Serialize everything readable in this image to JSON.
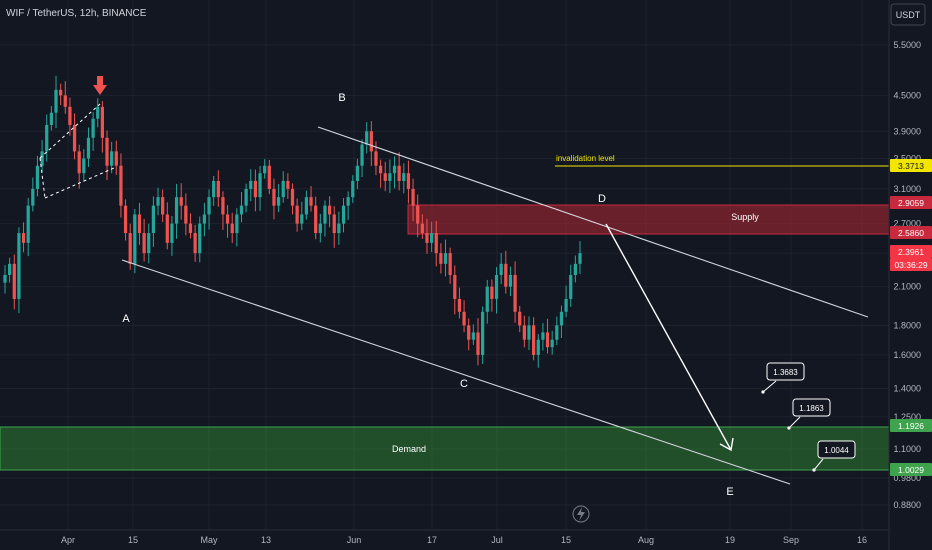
{
  "header": {
    "title": "WIF / TetherUS, 12h, BINANCE"
  },
  "price_axis": {
    "currency": "USDT",
    "ticks": [
      "5.5000",
      "4.5000",
      "3.9000",
      "3.5000",
      "3.1000",
      "2.7000",
      "2.4000",
      "2.1000",
      "1.8000",
      "1.6000",
      "1.4000",
      "1.2500",
      "1.1000",
      "0.9800",
      "0.8800"
    ]
  },
  "time_axis": {
    "ticks": [
      "Apr",
      "15",
      "May",
      "13",
      "Jun",
      "17",
      "Jul",
      "15",
      "Aug",
      "19",
      "Sep",
      "16"
    ]
  },
  "price_labels": [
    {
      "text": "3.3713",
      "color": "#f2e600",
      "text_color": "#131722"
    },
    {
      "text": "2.9059",
      "color": "#c8293d",
      "text_color": "#ffffff"
    },
    {
      "text": "2.5860",
      "color": "#c8293d",
      "text_color": "#ffffff"
    },
    {
      "text": "2.3961",
      "color": "#f23645",
      "text_color": "#ffffff"
    },
    {
      "text": "03:36:29",
      "color": "#f23645",
      "text_color": "#ffffff"
    },
    {
      "text": "1.1926",
      "color": "#3fa34d",
      "text_color": "#ffffff"
    },
    {
      "text": "1.0029",
      "color": "#3fa34d",
      "text_color": "#ffffff"
    }
  ],
  "zones": {
    "supply": {
      "label": "Supply",
      "top": 2.9059,
      "bottom": 2.586,
      "color": "#b22833"
    },
    "demand": {
      "label": "Demand",
      "top": 1.1926,
      "bottom": 1.0029,
      "color": "#2e7d32"
    }
  },
  "annotations": {
    "invalidation": {
      "text": "invalidation level",
      "value": 3.3713,
      "color": "#f2e600"
    },
    "wave_labels": [
      "A",
      "B",
      "C",
      "D",
      "E"
    ],
    "target_boxes": [
      "1.3683",
      "1.1863",
      "1.0044"
    ]
  },
  "colors": {
    "up": "#26a69a",
    "down": "#ef5350",
    "background": "#131722",
    "grid": "#1e222d",
    "lines": "#d1d4dc"
  },
  "chart_data": {
    "type": "candlestick",
    "title": "WIF / TetherUS, 12h, BINANCE",
    "symbol": "WIF/USDT",
    "interval": "12h",
    "ylabel": "USDT",
    "yscale": "log",
    "ylim": [
      0.8,
      6.0
    ],
    "x_ticks": [
      "Apr",
      "15",
      "May",
      "13",
      "Jun",
      "17",
      "Jul",
      "15",
      "Aug",
      "19",
      "Sep",
      "16"
    ],
    "approx_closes_12h": [
      2.2,
      2.3,
      2.0,
      2.6,
      2.5,
      2.9,
      3.1,
      3.4,
      3.6,
      4.0,
      4.2,
      4.6,
      4.5,
      4.3,
      4.0,
      3.6,
      3.3,
      3.5,
      3.8,
      4.1,
      4.3,
      3.8,
      3.4,
      3.6,
      3.4,
      2.9,
      2.6,
      2.3,
      2.8,
      2.6,
      2.4,
      2.6,
      2.9,
      3.0,
      2.8,
      2.5,
      2.7,
      3.0,
      2.9,
      2.7,
      2.6,
      2.4,
      2.7,
      2.8,
      3.0,
      3.2,
      3.0,
      2.8,
      2.7,
      2.6,
      2.8,
      2.9,
      3.1,
      3.2,
      3.0,
      3.3,
      3.4,
      3.1,
      2.9,
      3.0,
      3.2,
      3.1,
      2.9,
      2.7,
      2.8,
      3.0,
      2.9,
      2.6,
      2.7,
      2.9,
      2.8,
      2.6,
      2.7,
      2.9,
      3.0,
      3.2,
      3.4,
      3.7,
      3.9,
      3.6,
      3.4,
      3.3,
      3.2,
      3.3,
      3.4,
      3.2,
      3.3,
      3.1,
      2.9,
      2.7,
      2.6,
      2.5,
      2.6,
      2.4,
      2.3,
      2.4,
      2.2,
      2.0,
      1.9,
      1.8,
      1.7,
      1.75,
      1.6,
      1.9,
      2.1,
      2.0,
      2.2,
      2.3,
      2.1,
      2.2,
      1.9,
      1.8,
      1.7,
      1.8,
      1.6,
      1.7,
      1.75,
      1.65,
      1.7,
      1.8,
      1.9,
      2.0,
      2.2,
      2.3,
      2.4
    ],
    "markers": [
      {
        "label": "A",
        "price": 1.93
      },
      {
        "label": "B",
        "price": 3.95
      },
      {
        "label": "C",
        "price": 1.55
      },
      {
        "label": "D",
        "price": 2.9
      },
      {
        "label": "E",
        "price": 0.98
      }
    ],
    "supply_zone": [
      2.586,
      2.9059
    ],
    "demand_zone": [
      1.0029,
      1.1926
    ],
    "invalidation_level": 3.3713,
    "target_levels": [
      1.3683,
      1.1863,
      1.0044
    ],
    "last_price": 2.3961,
    "countdown": "03:36:29"
  }
}
